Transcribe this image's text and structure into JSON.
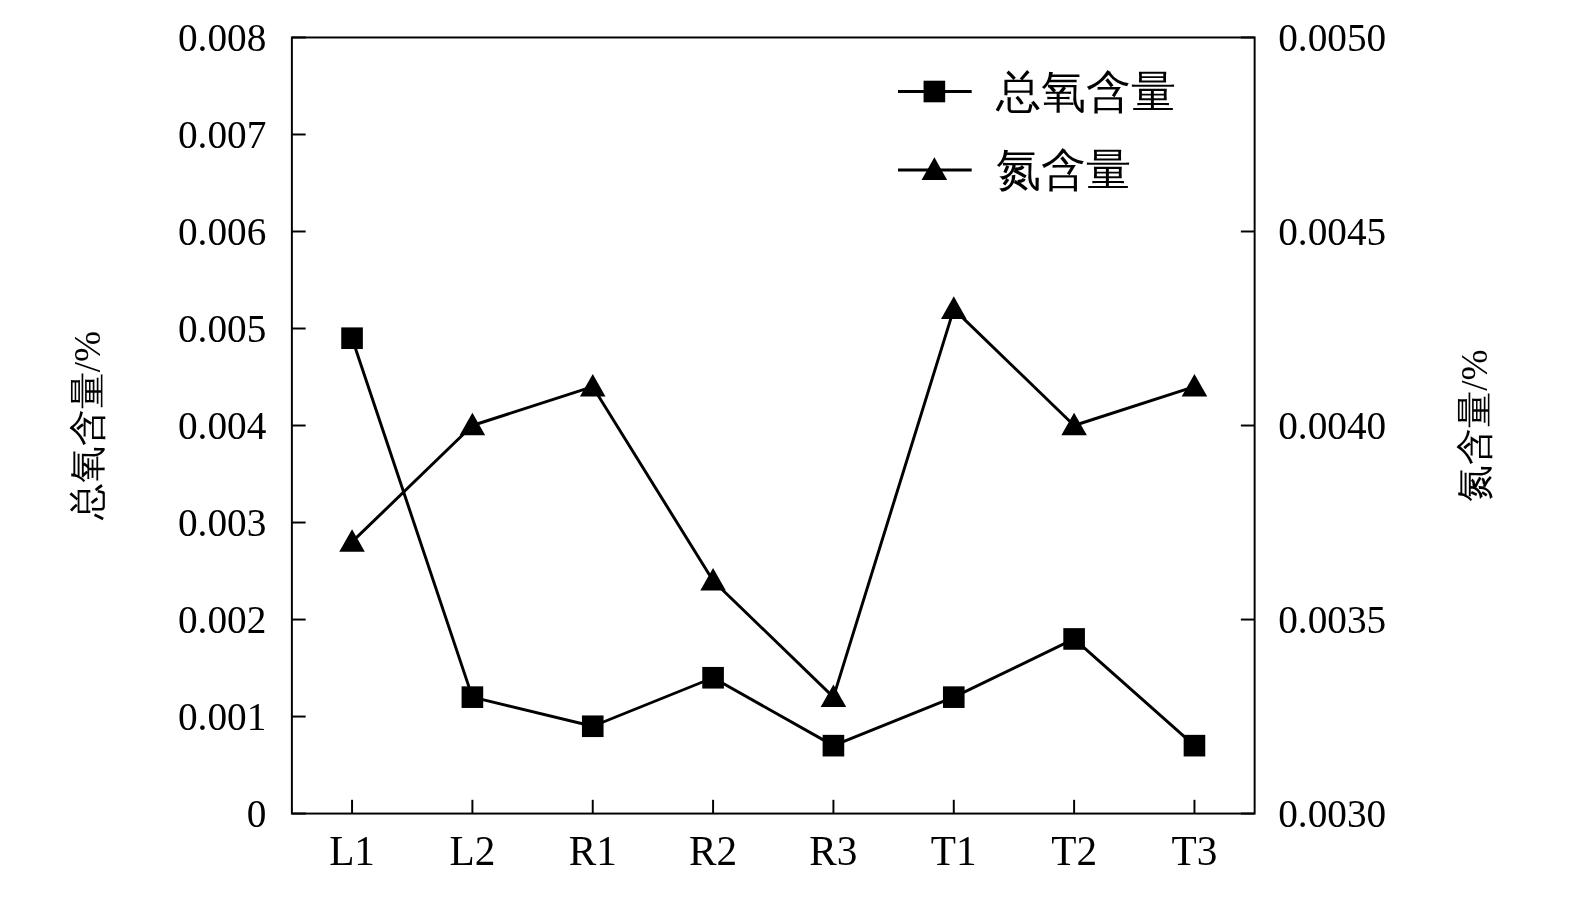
{
  "chart_data": {
    "type": "line",
    "categories": [
      "L1",
      "L2",
      "R1",
      "R2",
      "R3",
      "T1",
      "T2",
      "T3"
    ],
    "ylabel": "总氧含量/%",
    "y2label": "氮含量/%",
    "series": [
      {
        "name": "总氧含量",
        "color": "#000000",
        "marker": "square",
        "values": [
          0.0049,
          0.0012,
          0.0009,
          0.0014,
          0.0007,
          0.0012,
          0.0018,
          0.0007
        ]
      },
      {
        "name": "氮含量",
        "color": "#000000",
        "marker": "triangle",
        "axis": "y2",
        "values": [
          0.0037,
          0.004,
          0.0041,
          0.0036,
          0.0033,
          0.0043,
          0.004,
          0.0041
        ]
      }
    ],
    "ylim": [
      0,
      0.008
    ],
    "yticks": [
      0,
      0.001,
      0.002,
      0.003,
      0.004,
      0.005,
      0.006,
      0.007,
      0.008
    ],
    "y2lim": [
      0.003,
      0.005
    ],
    "y2ticks": [
      {
        "value": 0.003,
        "label": "0.0030"
      },
      {
        "value": 0.0035,
        "label": "0.0035"
      },
      {
        "value": 0.004,
        "label": "0.0040"
      },
      {
        "value": 0.0045,
        "label": "0.0045"
      },
      {
        "value": 0.005,
        "label": "0.0050"
      }
    ],
    "legend": "top right",
    "grid": false,
    "line_style": "solid"
  }
}
